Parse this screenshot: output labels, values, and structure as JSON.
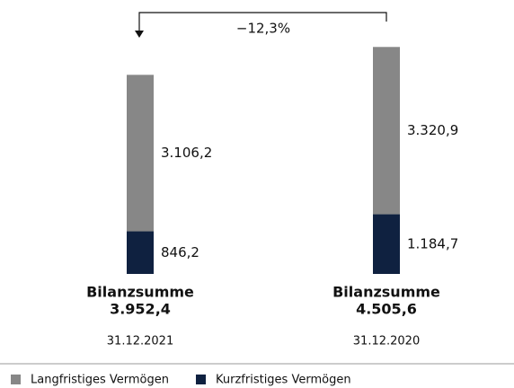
{
  "chart_data": {
    "type": "stacked_bar",
    "annotation": "−12,3%",
    "categories": [
      "31.12.2021",
      "31.12.2020"
    ],
    "series": [
      {
        "name": "Langfristiges Vermögen",
        "color": "#878787",
        "values": [
          3106.2,
          3320.9
        ],
        "value_labels": [
          "3.106,2",
          "3.320,9"
        ]
      },
      {
        "name": "Kurzfristiges Vermögen",
        "color": "#0f2140",
        "values": [
          846.2,
          1184.7
        ],
        "value_labels": [
          "846,2",
          "1.184,7"
        ]
      }
    ],
    "total_label": "Bilanzsumme",
    "totals": [
      3952.4,
      4505.6
    ],
    "total_value_labels": [
      "3.952,4",
      "4.505,6"
    ],
    "ylim": [
      0,
      4600
    ],
    "legend": "bottom-left"
  }
}
